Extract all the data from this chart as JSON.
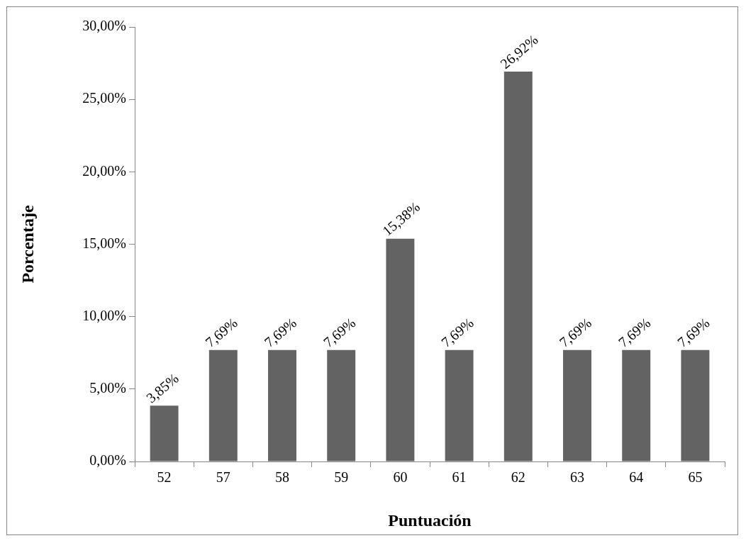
{
  "chart_data": {
    "type": "bar",
    "xlabel": "Puntuación",
    "ylabel": "Porcentaje",
    "categories": [
      "52",
      "57",
      "58",
      "59",
      "60",
      "61",
      "62",
      "63",
      "64",
      "65"
    ],
    "values": [
      3.85,
      7.69,
      7.69,
      7.69,
      15.38,
      7.69,
      26.92,
      7.69,
      7.69,
      7.69
    ],
    "value_labels": [
      "3,85%",
      "7,69%",
      "7,69%",
      "7,69%",
      "15,38%",
      "7,69%",
      "26,92%",
      "7,69%",
      "7,69%",
      "7,69%"
    ],
    "color": "#636363",
    "ylim": [
      0,
      30
    ],
    "yticks": [
      {
        "value": 0,
        "label": "0,00%"
      },
      {
        "value": 5,
        "label": "5,00%"
      },
      {
        "value": 10,
        "label": "10,00%"
      },
      {
        "value": 15,
        "label": "15,00%"
      },
      {
        "value": 20,
        "label": "20,00%"
      },
      {
        "value": 25,
        "label": "25,00%"
      },
      {
        "value": 30,
        "label": "30,00%"
      }
    ],
    "grid": false,
    "legend": false
  }
}
